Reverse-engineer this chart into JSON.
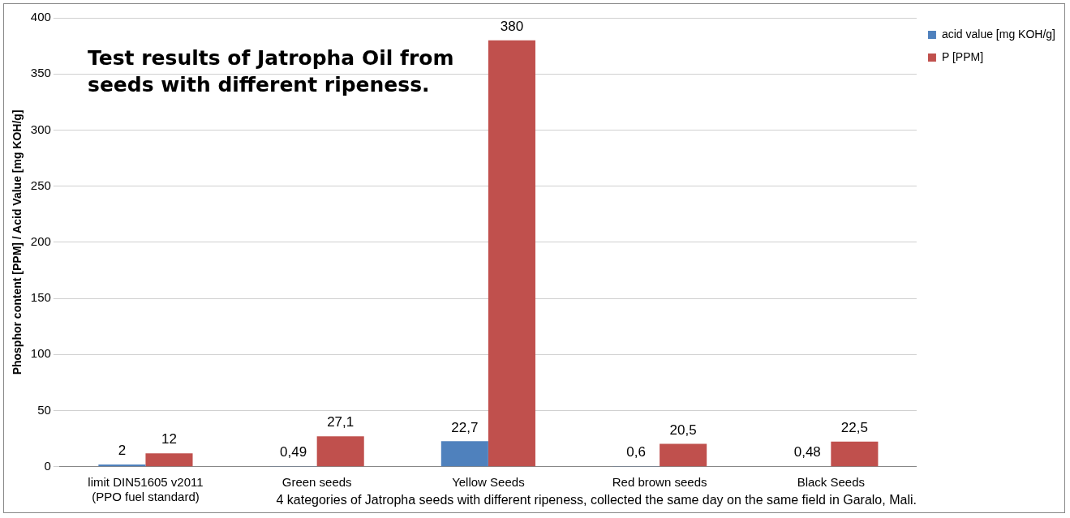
{
  "chart_data": {
    "type": "bar",
    "title": "Test results of Jatropha Oil from seeds with different ripeness.",
    "xlabel": "4 kategories of Jatropha seeds with different ripeness, collected the same day on the same field in Garalo, Mali.",
    "ylabel": "Phosphor content [PPM] / Acid Value [mg KOH/g]",
    "categories": [
      "limit DIN51605 v2011\n(PPO fuel standard)",
      "Green seeds",
      "Yellow Seeds",
      "Red brown seeds",
      "Black Seeds"
    ],
    "series": [
      {
        "name": "acid value [mg KOH/g]",
        "color": "#4f81bd",
        "values": [
          2,
          0.49,
          22.7,
          0.6,
          0.48
        ],
        "value_labels": [
          "2",
          "0,49",
          "22,7",
          "0,6",
          "0,48"
        ]
      },
      {
        "name": "P [PPM]",
        "color": "#c0504d",
        "values": [
          12,
          27.1,
          380,
          20.5,
          22.5
        ],
        "value_labels": [
          "12",
          "27,1",
          "380",
          "20,5",
          "22,5"
        ]
      }
    ],
    "ylim": [
      0,
      400
    ],
    "yticks": [
      0,
      50,
      100,
      150,
      200,
      250,
      300,
      350,
      400
    ],
    "grid": "y",
    "legend": "top right"
  }
}
